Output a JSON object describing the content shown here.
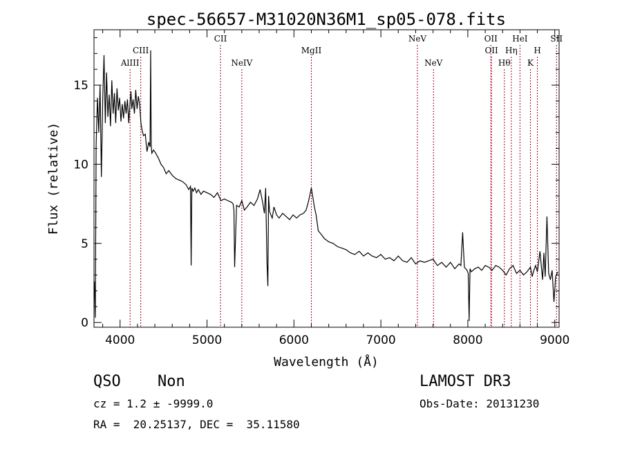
{
  "chart_data": {
    "type": "line",
    "title": "spec-56657-M31020N36M1_sp05-078.fits",
    "xlabel": "Wavelength (Å)",
    "ylabel": "Flux (relative)",
    "xlim": [
      3700,
      9050
    ],
    "ylim": [
      -0.3,
      18.5
    ],
    "xticks": [
      4000,
      5000,
      6000,
      7000,
      8000,
      9000
    ],
    "xtick_labels": [
      "4000",
      "5000",
      "6000",
      "7000",
      "8000",
      "9000"
    ],
    "yticks": [
      0,
      5,
      10,
      15
    ],
    "ytick_labels": [
      "0",
      "5",
      "10",
      "15"
    ],
    "grid": false,
    "line_color": "#000000",
    "marker_color": "#a0001c",
    "series": [
      {
        "name": "flux",
        "x": [
          3705,
          3715,
          3725,
          3740,
          3755,
          3770,
          3785,
          3800,
          3815,
          3830,
          3845,
          3860,
          3875,
          3890,
          3905,
          3920,
          3935,
          3950,
          3965,
          3980,
          3995,
          4010,
          4025,
          4040,
          4055,
          4070,
          4085,
          4100,
          4115,
          4125,
          4135,
          4150,
          4165,
          4180,
          4195,
          4210,
          4225,
          4240,
          4255,
          4270,
          4290,
          4310,
          4330,
          4345,
          4352,
          4358,
          4365,
          4385,
          4410,
          4440,
          4470,
          4500,
          4530,
          4560,
          4600,
          4640,
          4680,
          4720,
          4760,
          4790,
          4810,
          4818,
          4826,
          4840,
          4860,
          4880,
          4900,
          4930,
          4960,
          5000,
          5040,
          5080,
          5120,
          5160,
          5200,
          5240,
          5280,
          5300,
          5310,
          5318,
          5340,
          5370,
          5400,
          5430,
          5460,
          5500,
          5540,
          5580,
          5610,
          5640,
          5660,
          5675,
          5690,
          5700,
          5708,
          5720,
          5735,
          5750,
          5770,
          5800,
          5830,
          5870,
          5910,
          5950,
          5990,
          6030,
          6070,
          6110,
          6140,
          6165,
          6185,
          6200,
          6215,
          6235,
          6255,
          6280,
          6310,
          6350,
          6400,
          6450,
          6500,
          6550,
          6600,
          6650,
          6700,
          6750,
          6800,
          6850,
          6900,
          6950,
          7000,
          7050,
          7100,
          7150,
          7200,
          7250,
          7300,
          7350,
          7400,
          7450,
          7500,
          7550,
          7600,
          7650,
          7700,
          7750,
          7800,
          7850,
          7900,
          7920,
          7940,
          7960,
          7990,
          8005,
          8015,
          8025,
          8040,
          8080,
          8120,
          8160,
          8200,
          8240,
          8280,
          8320,
          8360,
          8400,
          8440,
          8480,
          8520,
          8560,
          8600,
          8640,
          8680,
          8720,
          8740,
          8760,
          8780,
          8800,
          8830,
          8860,
          8875,
          8890,
          8910,
          8930,
          8950,
          8970,
          8990,
          9010,
          9035
        ],
        "values": [
          2.6,
          0.3,
          11.2,
          14.2,
          12.0,
          15.0,
          9.2,
          14.0,
          16.9,
          12.6,
          15.8,
          13.0,
          14.4,
          12.4,
          15.3,
          13.2,
          14.5,
          12.6,
          14.8,
          13.4,
          14.2,
          12.7,
          13.8,
          12.9,
          14.0,
          13.2,
          14.1,
          12.6,
          13.9,
          14.6,
          13.5,
          14.1,
          13.2,
          14.7,
          13.5,
          14.3,
          13.8,
          12.6,
          12.1,
          11.8,
          11.9,
          10.8,
          11.4,
          11.1,
          17.2,
          11.2,
          10.7,
          10.9,
          10.7,
          10.4,
          10.0,
          9.8,
          9.4,
          9.6,
          9.3,
          9.1,
          9.0,
          8.9,
          8.7,
          8.4,
          8.6,
          3.6,
          8.5,
          8.3,
          8.5,
          8.2,
          8.4,
          8.1,
          8.3,
          8.2,
          8.1,
          7.9,
          8.2,
          7.7,
          7.8,
          7.7,
          7.6,
          7.5,
          7.1,
          3.5,
          7.4,
          7.3,
          7.7,
          7.1,
          7.3,
          7.6,
          7.4,
          7.8,
          8.4,
          7.6,
          6.9,
          8.5,
          3.8,
          2.3,
          8.0,
          7.0,
          6.8,
          6.6,
          7.3,
          6.8,
          6.6,
          6.9,
          6.7,
          6.5,
          6.8,
          6.6,
          6.8,
          6.9,
          7.1,
          7.6,
          8.1,
          8.5,
          8.0,
          7.3,
          6.8,
          5.8,
          5.6,
          5.3,
          5.1,
          5.0,
          4.8,
          4.7,
          4.6,
          4.4,
          4.3,
          4.5,
          4.2,
          4.4,
          4.2,
          4.1,
          4.3,
          4.0,
          4.1,
          3.9,
          4.2,
          3.9,
          3.8,
          4.1,
          3.7,
          3.9,
          3.8,
          3.9,
          4.0,
          3.6,
          3.8,
          3.5,
          3.8,
          3.4,
          3.7,
          3.6,
          5.7,
          3.5,
          3.3,
          3.1,
          0.1,
          3.4,
          3.2,
          3.4,
          3.5,
          3.3,
          3.6,
          3.5,
          3.3,
          3.6,
          3.5,
          3.3,
          3.0,
          3.4,
          3.6,
          3.1,
          3.3,
          3.0,
          3.2,
          3.5,
          2.9,
          3.3,
          3.6,
          3.2,
          4.5,
          2.7,
          4.4,
          2.9,
          6.7,
          3.1,
          2.7,
          3.3,
          1.3,
          2.9,
          3.2
        ]
      }
    ],
    "line_markers": [
      {
        "label": "AlIII",
        "wavelength": 4115,
        "row": 3
      },
      {
        "label": "CIII",
        "wavelength": 4238,
        "row": 2
      },
      {
        "label": "CII",
        "wavelength": 5155,
        "row": 1
      },
      {
        "label": "NeIV",
        "wavelength": 5400,
        "row": 3
      },
      {
        "label": "MgII",
        "wavelength": 6200,
        "row": 2
      },
      {
        "label": "NeV",
        "wavelength": 7420,
        "row": 1
      },
      {
        "label": "NeV",
        "wavelength": 7605,
        "row": 3
      },
      {
        "label": "OII",
        "wavelength": 8265,
        "row": 1
      },
      {
        "label": "OII",
        "wavelength": 8272,
        "row": 2
      },
      {
        "label": "Hθ",
        "wavelength": 8420,
        "row": 3
      },
      {
        "label": "Hη",
        "wavelength": 8500,
        "row": 2
      },
      {
        "label": "HeI",
        "wavelength": 8600,
        "row": 1
      },
      {
        "label": "K",
        "wavelength": 8720,
        "row": 3
      },
      {
        "label": "H",
        "wavelength": 8800,
        "row": 2
      },
      {
        "label": "SII",
        "wavelength": 9020,
        "row": 1
      }
    ]
  },
  "info": {
    "class_label": "QSO",
    "subclass_label": "Non",
    "survey": "LAMOST DR3",
    "redshift": "cz = 1.2 ± -9999.0",
    "obs_date": "Obs-Date: 20131230",
    "coords": "RA =  20.25137, DEC =  35.11580"
  }
}
